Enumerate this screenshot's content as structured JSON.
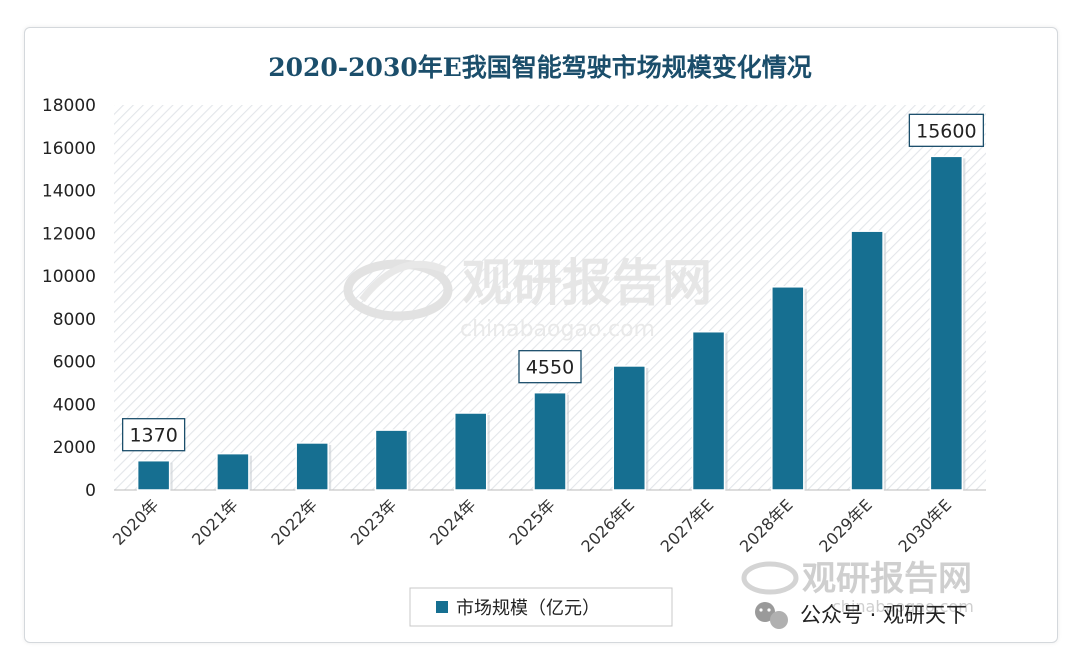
{
  "chart_data": {
    "type": "bar",
    "title": "2020-2030年E我国智能驾驶市场规模变化情况",
    "categories": [
      "2020年",
      "2021年",
      "2022年",
      "2023年",
      "2024年",
      "2025年",
      "2026年E",
      "2027年E",
      "2028年E",
      "2029年E",
      "2030年E"
    ],
    "series": [
      {
        "name": "市场规模（亿元）",
        "values": [
          1370,
          1700,
          2200,
          2800,
          3600,
          4550,
          5800,
          7400,
          9500,
          12100,
          15600
        ]
      }
    ],
    "data_labels": [
      "1370",
      "4550",
      "15600"
    ],
    "yticks": [
      "0",
      "2000",
      "4000",
      "6000",
      "8000",
      "10000",
      "12000",
      "14000",
      "16000",
      "18000"
    ],
    "ylim": [
      0,
      18000
    ],
    "grid": false,
    "legend_position": "bottom-center",
    "bar_color": "#166f91"
  },
  "watermark": {
    "name": "观研报告网",
    "url": "chinabaogao.com"
  },
  "footer": {
    "account_text": "公众号 · 观研天下",
    "brand": "观研报告网",
    "brand_url": "chinabaogao.com"
  }
}
